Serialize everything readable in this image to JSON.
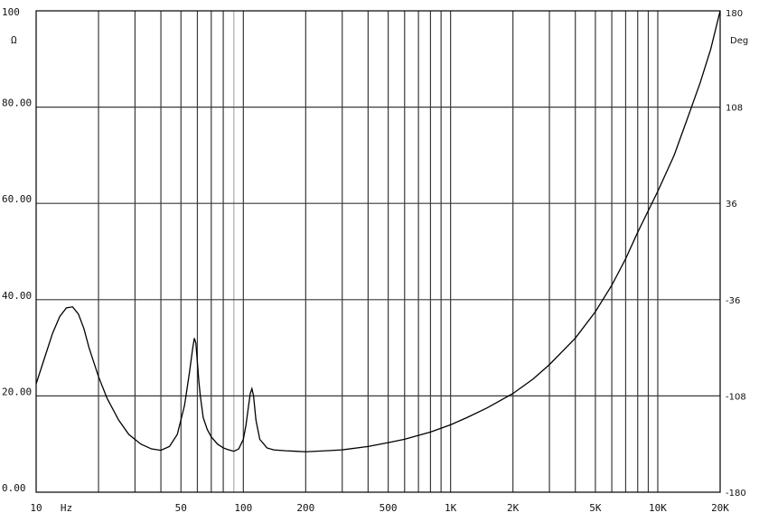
{
  "chart_data": {
    "type": "line",
    "xscale": "log",
    "xlim": [
      10,
      20000
    ],
    "ylim": [
      0,
      100
    ],
    "y2lim": [
      -180,
      180
    ],
    "grid": true,
    "ylabel_unit": "Ω",
    "y2label_unit": "Deg",
    "xunit_label": "Hz",
    "x_tick_labels": [
      {
        "value": 10,
        "label": "10"
      },
      {
        "value": 50,
        "label": "50"
      },
      {
        "value": 100,
        "label": "100"
      },
      {
        "value": 200,
        "label": "200"
      },
      {
        "value": 500,
        "label": "500"
      },
      {
        "value": 1000,
        "label": "1K"
      },
      {
        "value": 2000,
        "label": "2K"
      },
      {
        "value": 5000,
        "label": "5K"
      },
      {
        "value": 10000,
        "label": "10K"
      },
      {
        "value": 20000,
        "label": "20K"
      }
    ],
    "y_tick_labels": [
      {
        "value": 100,
        "label": "100"
      },
      {
        "value": 80,
        "label": "80.00"
      },
      {
        "value": 60,
        "label": "60.00"
      },
      {
        "value": 40,
        "label": "40.00"
      },
      {
        "value": 20,
        "label": "20.00"
      },
      {
        "value": 0,
        "label": "0.00"
      }
    ],
    "y2_tick_labels": [
      {
        "value": 180,
        "label": "180"
      },
      {
        "value": 108,
        "label": "108"
      },
      {
        "value": 36,
        "label": "36"
      },
      {
        "value": -36,
        "label": "-36"
      },
      {
        "value": -108,
        "label": "-108"
      },
      {
        "value": -180,
        "label": "-180"
      }
    ],
    "series": [
      {
        "x": [
          10,
          11,
          12,
          13,
          14,
          15,
          16,
          17,
          18,
          20,
          22,
          25,
          28,
          32,
          36,
          40,
          44,
          48,
          52,
          55,
          57,
          58,
          59,
          60,
          61,
          62,
          64,
          67,
          70,
          75,
          80,
          85,
          90,
          95,
          100,
          103,
          106,
          108,
          110,
          112,
          115,
          120,
          130,
          140,
          160,
          180,
          200,
          250,
          300,
          400,
          500,
          600,
          800,
          1000,
          1200,
          1500,
          2000,
          2500,
          3000,
          4000,
          5000,
          6000,
          7000,
          8000,
          10000,
          12000,
          14000,
          16000,
          18000,
          20000
        ],
        "values": [
          22.5,
          28,
          33,
          36.5,
          38.3,
          38.5,
          37,
          34,
          30,
          24,
          19.5,
          15,
          12,
          10,
          9,
          8.7,
          9.5,
          12,
          18,
          25,
          30,
          32,
          31,
          27,
          23,
          20,
          15.5,
          13,
          11.5,
          10,
          9.2,
          8.8,
          8.5,
          9,
          11,
          14,
          18,
          20.5,
          21.5,
          20,
          15,
          11,
          9.2,
          8.8,
          8.6,
          8.5,
          8.4,
          8.6,
          8.8,
          9.5,
          10.3,
          11,
          12.5,
          14,
          15.5,
          17.5,
          20.5,
          23.5,
          26.5,
          32,
          37.5,
          43,
          48.5,
          54,
          62.5,
          70,
          78,
          85,
          92,
          100
        ]
      }
    ]
  }
}
